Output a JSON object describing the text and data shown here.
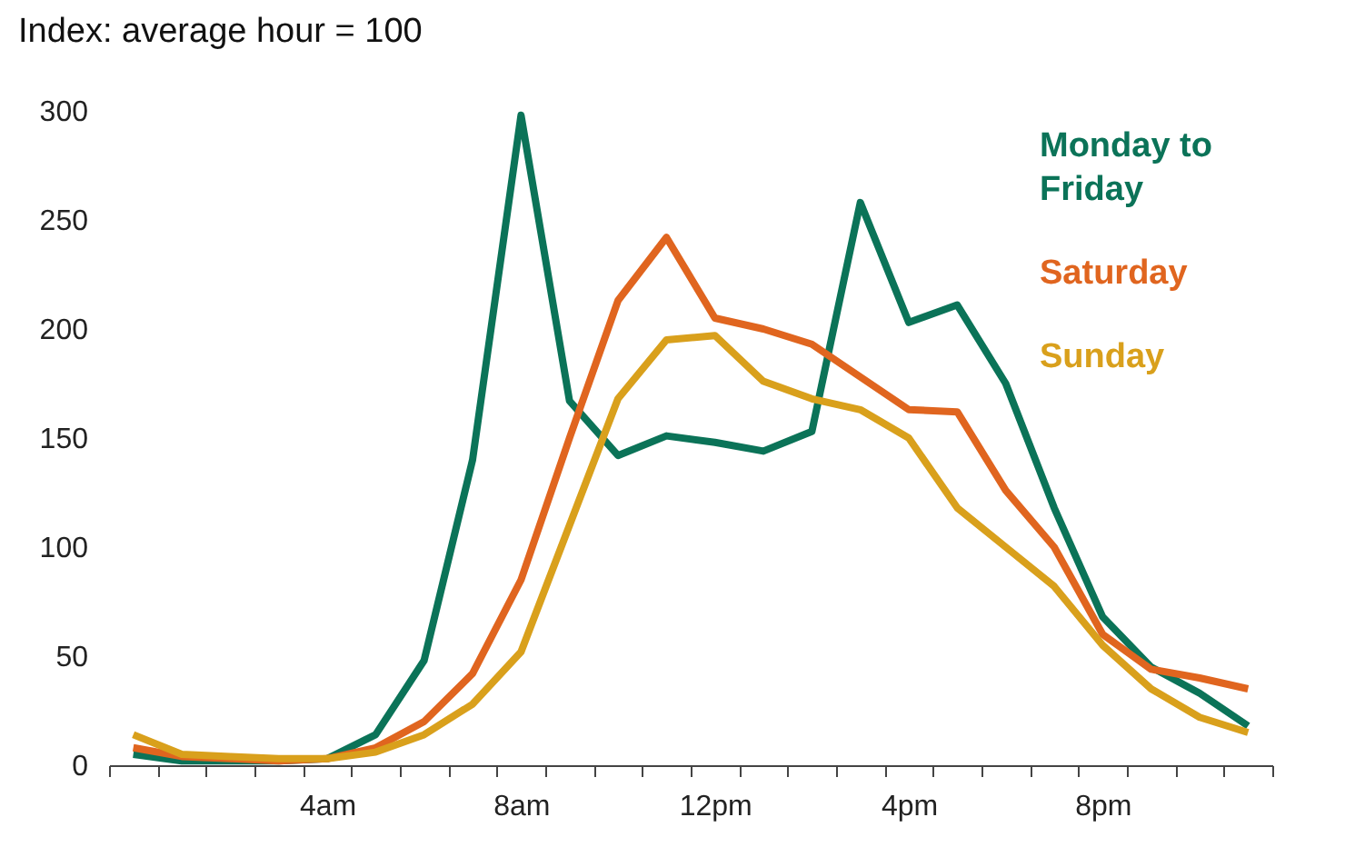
{
  "chart_data": {
    "type": "line",
    "title": "Index: average hour = 100",
    "categories": [
      null,
      null,
      null,
      null,
      "4am",
      null,
      null,
      null,
      "8am",
      null,
      null,
      null,
      "12pm",
      null,
      null,
      null,
      "4pm",
      null,
      null,
      null,
      "8pm",
      null,
      null,
      null
    ],
    "series": [
      {
        "name": "Monday to Friday",
        "color": "#0b7358",
        "values": [
          5,
          2,
          2,
          2,
          3,
          14,
          48,
          140,
          298,
          167,
          142,
          151,
          148,
          144,
          153,
          258,
          203,
          211,
          175,
          118,
          68,
          45,
          33,
          18
        ]
      },
      {
        "name": "Saturday",
        "color": "#e0651f",
        "values": [
          8,
          4,
          3,
          2,
          3,
          8,
          20,
          42,
          85,
          150,
          213,
          242,
          205,
          200,
          193,
          178,
          163,
          162,
          126,
          100,
          60,
          44,
          40,
          35
        ]
      },
      {
        "name": "Sunday",
        "color": "#d9a01c",
        "values": [
          14,
          5,
          4,
          3,
          3,
          6,
          14,
          28,
          52,
          110,
          168,
          195,
          197,
          176,
          168,
          163,
          150,
          118,
          100,
          82,
          55,
          35,
          22,
          15
        ]
      }
    ],
    "ylim": [
      0,
      300
    ],
    "yticks": [
      0,
      50,
      100,
      150,
      200,
      250,
      300
    ],
    "grid": false,
    "legend": "top right",
    "line_style": "solid",
    "marker": "none"
  }
}
